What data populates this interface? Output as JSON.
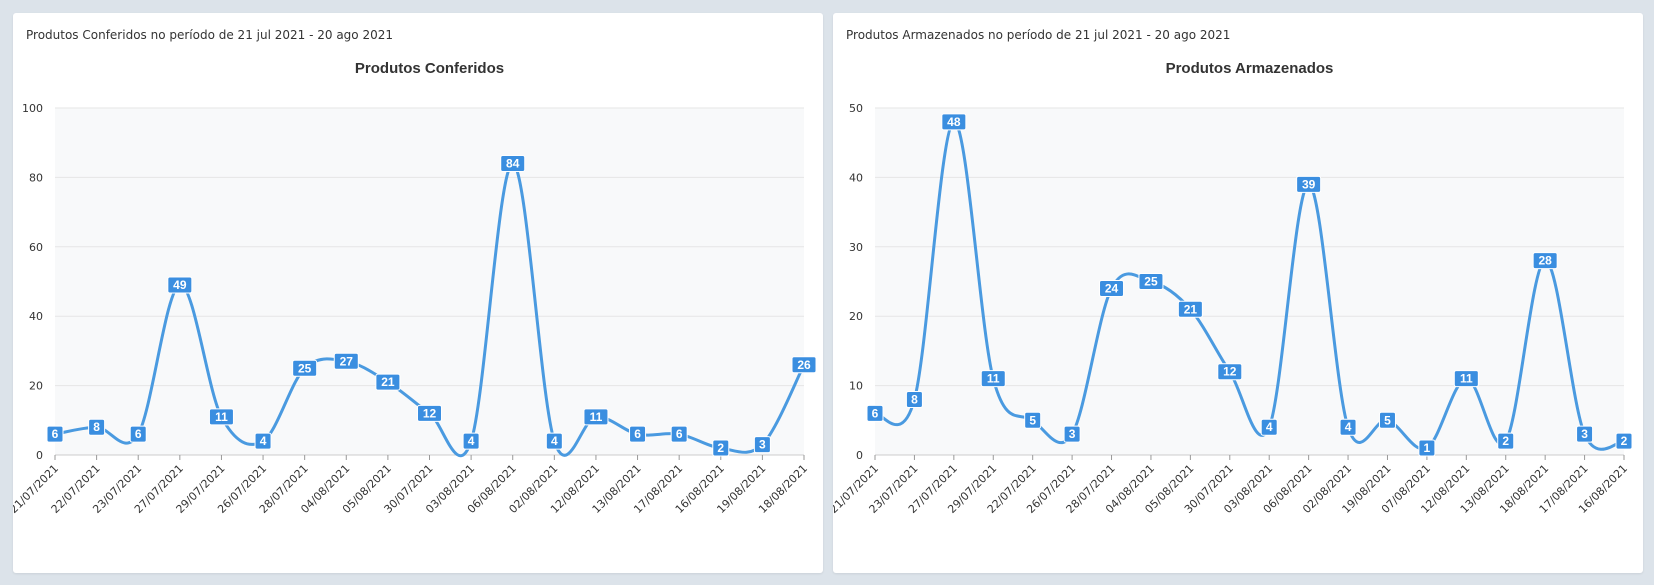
{
  "panels": [
    {
      "header": "Produtos Conferidos no período de 21 jul 2021 - 20 ago 2021"
    },
    {
      "header": "Produtos Armazenados no período de 21 jul 2021 - 20 ago 2021"
    }
  ],
  "colors": {
    "line": "#4a9ae0",
    "label_bg": "#3a8ee0",
    "plot_bg": "#f8f9fa",
    "grid": "#e6e6e6"
  },
  "chart_data": [
    {
      "type": "line",
      "title": "Produtos Conferidos",
      "xlabel": "",
      "ylabel": "",
      "ylim": [
        0,
        100
      ],
      "yticks": [
        0,
        20,
        40,
        60,
        80,
        100
      ],
      "grid": true,
      "categories": [
        "21/07/2021",
        "22/07/2021",
        "23/07/2021",
        "27/07/2021",
        "29/07/2021",
        "26/07/2021",
        "28/07/2021",
        "04/08/2021",
        "05/08/2021",
        "30/07/2021",
        "03/08/2021",
        "06/08/2021",
        "02/08/2021",
        "12/08/2021",
        "13/08/2021",
        "17/08/2021",
        "16/08/2021",
        "19/08/2021",
        "18/08/2021"
      ],
      "series": [
        {
          "values": [
            6,
            8,
            6,
            49,
            11,
            4,
            25,
            27,
            21,
            12,
            4,
            84,
            4,
            11,
            6,
            6,
            2,
            3,
            26
          ]
        }
      ]
    },
    {
      "type": "line",
      "title": "Produtos Armazenados",
      "xlabel": "",
      "ylabel": "",
      "ylim": [
        0,
        50
      ],
      "yticks": [
        0,
        10,
        20,
        30,
        40,
        50
      ],
      "grid": true,
      "categories": [
        "21/07/2021",
        "23/07/2021",
        "27/07/2021",
        "29/07/2021",
        "22/07/2021",
        "26/07/2021",
        "28/07/2021",
        "04/08/2021",
        "05/08/2021",
        "30/07/2021",
        "03/08/2021",
        "06/08/2021",
        "02/08/2021",
        "19/08/2021",
        "07/08/2021",
        "12/08/2021",
        "13/08/2021",
        "18/08/2021",
        "17/08/2021",
        "16/08/2021"
      ],
      "series": [
        {
          "values": [
            6,
            8,
            48,
            11,
            5,
            3,
            24,
            25,
            21,
            12,
            4,
            39,
            4,
            5,
            1,
            11,
            2,
            28,
            3,
            2
          ]
        }
      ]
    }
  ]
}
